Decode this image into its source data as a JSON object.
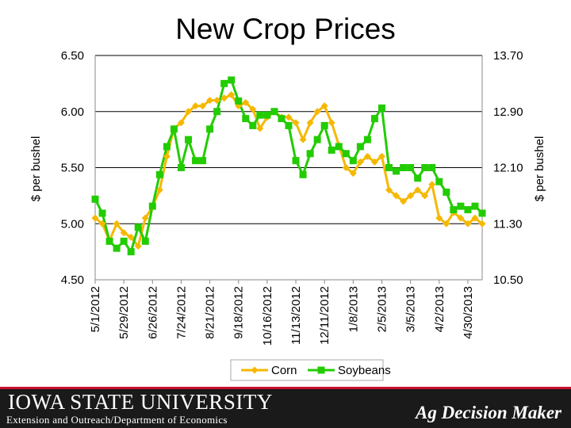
{
  "slide": {
    "title": "New Crop Prices",
    "footer": {
      "university": "IOWA STATE UNIVERSITY",
      "department": "Extension and Outreach/Department of Economics",
      "brand": "Ag Decision Maker"
    }
  },
  "chart_data": {
    "type": "line",
    "title": "New Crop Prices",
    "ylabel_left": "$ per bushel",
    "ylabel_right": "$ per bushel",
    "yleft_range": [
      4.5,
      6.5
    ],
    "yleft_ticks": [
      "4.50",
      "5.00",
      "5.50",
      "6.00",
      "6.50"
    ],
    "yright_range": [
      10.5,
      13.7
    ],
    "yright_ticks": [
      "10.50",
      "11.30",
      "12.10",
      "12.90",
      "13.70"
    ],
    "x_range": [
      "2012-05-01",
      "2013-05-14"
    ],
    "x_ticks": [
      "5/1/2012",
      "5/29/2012",
      "6/26/2012",
      "7/24/2012",
      "8/21/2012",
      "9/18/2012",
      "10/16/2012",
      "11/13/2012",
      "12/11/2012",
      "1/8/2013",
      "2/5/2013",
      "3/5/2013",
      "4/2/2013",
      "4/30/2013"
    ],
    "grid": "horizontal",
    "legend_position": "bottom",
    "series": [
      {
        "name": "Corn",
        "axis": "left",
        "color": "#f5b800",
        "marker": "diamond",
        "x": [
          "2012-05-01",
          "2012-05-08",
          "2012-05-15",
          "2012-05-22",
          "2012-05-29",
          "2012-06-05",
          "2012-06-12",
          "2012-06-19",
          "2012-06-26",
          "2012-07-03",
          "2012-07-10",
          "2012-07-17",
          "2012-07-24",
          "2012-07-31",
          "2012-08-07",
          "2012-08-14",
          "2012-08-21",
          "2012-08-28",
          "2012-09-04",
          "2012-09-11",
          "2012-09-18",
          "2012-09-25",
          "2012-10-02",
          "2012-10-09",
          "2012-10-16",
          "2012-10-23",
          "2012-10-30",
          "2012-11-06",
          "2012-11-13",
          "2012-11-20",
          "2012-11-27",
          "2012-12-04",
          "2012-12-11",
          "2012-12-18",
          "2012-12-25",
          "2013-01-01",
          "2013-01-08",
          "2013-01-15",
          "2013-01-22",
          "2013-01-29",
          "2013-02-05",
          "2013-02-12",
          "2013-02-19",
          "2013-02-26",
          "2013-03-05",
          "2013-03-12",
          "2013-03-19",
          "2013-03-26",
          "2013-04-02",
          "2013-04-09",
          "2013-04-16",
          "2013-04-23",
          "2013-04-30",
          "2013-05-07",
          "2013-05-14"
        ],
        "values": [
          5.05,
          5.0,
          4.85,
          5.0,
          4.92,
          4.88,
          4.8,
          5.05,
          5.15,
          5.3,
          5.6,
          5.85,
          5.9,
          6.0,
          6.05,
          6.05,
          6.1,
          6.1,
          6.12,
          6.15,
          6.05,
          6.08,
          6.02,
          5.85,
          5.95,
          6.0,
          5.95,
          5.95,
          5.9,
          5.75,
          5.9,
          6.0,
          6.05,
          5.9,
          5.7,
          5.5,
          5.45,
          5.55,
          5.6,
          5.55,
          5.6,
          5.3,
          5.25,
          5.2,
          5.25,
          5.3,
          5.25,
          5.35,
          5.05,
          5.0,
          5.1,
          5.05,
          5.0,
          5.05,
          5.0
        ]
      },
      {
        "name": "Soybeans",
        "axis": "right",
        "color": "#22cc00",
        "marker": "square",
        "x": [
          "2012-05-01",
          "2012-05-08",
          "2012-05-15",
          "2012-05-22",
          "2012-05-29",
          "2012-06-05",
          "2012-06-12",
          "2012-06-19",
          "2012-06-26",
          "2012-07-03",
          "2012-07-10",
          "2012-07-17",
          "2012-07-24",
          "2012-07-31",
          "2012-08-07",
          "2012-08-14",
          "2012-08-21",
          "2012-08-28",
          "2012-09-04",
          "2012-09-11",
          "2012-09-18",
          "2012-09-25",
          "2012-10-02",
          "2012-10-09",
          "2012-10-16",
          "2012-10-23",
          "2012-10-30",
          "2012-11-06",
          "2012-11-13",
          "2012-11-20",
          "2012-11-27",
          "2012-12-04",
          "2012-12-11",
          "2012-12-18",
          "2012-12-25",
          "2013-01-01",
          "2013-01-08",
          "2013-01-15",
          "2013-01-22",
          "2013-01-29",
          "2013-02-05",
          "2013-02-12",
          "2013-02-19",
          "2013-02-26",
          "2013-03-05",
          "2013-03-12",
          "2013-03-19",
          "2013-03-26",
          "2013-04-02",
          "2013-04-09",
          "2013-04-16",
          "2013-04-23",
          "2013-04-30",
          "2013-05-07",
          "2013-05-14"
        ],
        "values": [
          11.65,
          11.45,
          11.05,
          10.95,
          11.05,
          10.9,
          11.25,
          11.05,
          11.55,
          12.0,
          12.4,
          12.65,
          12.1,
          12.5,
          12.2,
          12.2,
          12.65,
          12.9,
          13.3,
          13.35,
          13.05,
          12.8,
          12.7,
          12.85,
          12.85,
          12.9,
          12.8,
          12.7,
          12.2,
          12.0,
          12.3,
          12.5,
          12.7,
          12.35,
          12.4,
          12.3,
          12.2,
          12.4,
          12.5,
          12.8,
          12.95,
          12.1,
          12.05,
          12.1,
          12.1,
          11.95,
          12.1,
          12.1,
          11.9,
          11.75,
          11.5,
          11.55,
          11.5,
          11.55,
          11.45
        ]
      }
    ]
  }
}
